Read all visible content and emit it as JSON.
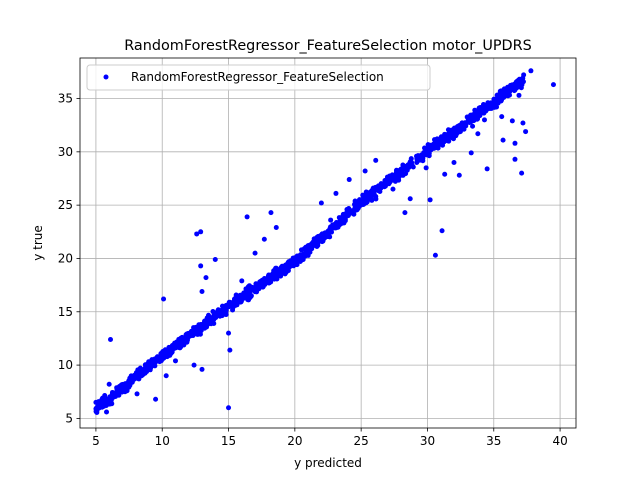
{
  "chart_data": {
    "type": "scatter",
    "title": "RandomForestRegressor_FeatureSelection motor_UPDRS",
    "xlabel": "y predicted",
    "ylabel": "y true",
    "xlim": [
      3.8,
      41.2
    ],
    "ylim": [
      4.1,
      38.8
    ],
    "xticks": [
      5,
      10,
      15,
      20,
      25,
      30,
      35,
      40
    ],
    "yticks": [
      5,
      10,
      15,
      20,
      25,
      30,
      35
    ],
    "grid": true,
    "legend_position": "top-left",
    "series": [
      {
        "name": "RandomForestRegressor_FeatureSelection",
        "color": "#0000ff",
        "marker": "circle",
        "trend_points": [
          [
            5.0,
            5.9
          ],
          [
            10.0,
            10.8
          ],
          [
            15.0,
            15.5
          ],
          [
            20.0,
            19.7
          ],
          [
            25.0,
            25.2
          ],
          [
            30.0,
            30.1
          ],
          [
            35.0,
            34.6
          ],
          [
            37.3,
            36.9
          ]
        ],
        "outliers": [
          [
            5.0,
            6.5
          ],
          [
            5.5,
            6.9
          ],
          [
            5.8,
            5.6
          ],
          [
            6.1,
            12.4
          ],
          [
            6.0,
            8.2
          ],
          [
            8.1,
            7.3
          ],
          [
            9.5,
            6.8
          ],
          [
            10.1,
            16.2
          ],
          [
            10.3,
            9.0
          ],
          [
            11.0,
            10.4
          ],
          [
            12.4,
            10.0
          ],
          [
            12.6,
            22.3
          ],
          [
            12.9,
            22.5
          ],
          [
            12.9,
            19.3
          ],
          [
            13.0,
            16.9
          ],
          [
            13.0,
            9.6
          ],
          [
            13.3,
            18.2
          ],
          [
            14.0,
            19.9
          ],
          [
            14.2,
            15.1
          ],
          [
            15.0,
            6.0
          ],
          [
            15.0,
            13.0
          ],
          [
            15.1,
            11.4
          ],
          [
            16.0,
            17.9
          ],
          [
            16.4,
            23.9
          ],
          [
            17.0,
            20.5
          ],
          [
            17.7,
            21.8
          ],
          [
            18.2,
            24.3
          ],
          [
            18.6,
            22.9
          ],
          [
            20.5,
            20.8
          ],
          [
            21.0,
            21.2
          ],
          [
            22.0,
            25.2
          ],
          [
            22.7,
            23.6
          ],
          [
            23.1,
            26.1
          ],
          [
            24.1,
            27.4
          ],
          [
            24.4,
            24.4
          ],
          [
            25.3,
            28.2
          ],
          [
            26.1,
            29.2
          ],
          [
            27.4,
            26.5
          ],
          [
            28.3,
            24.3
          ],
          [
            28.7,
            25.6
          ],
          [
            29.9,
            28.5
          ],
          [
            30.2,
            25.5
          ],
          [
            30.6,
            20.3
          ],
          [
            31.1,
            22.6
          ],
          [
            31.3,
            27.9
          ],
          [
            32.0,
            29.0
          ],
          [
            32.4,
            27.8
          ],
          [
            33.3,
            29.9
          ],
          [
            33.8,
            31.7
          ],
          [
            34.5,
            28.4
          ],
          [
            34.3,
            33.0
          ],
          [
            35.6,
            33.3
          ],
          [
            35.7,
            31.1
          ],
          [
            36.4,
            32.9
          ],
          [
            36.6,
            30.8
          ],
          [
            36.6,
            29.3
          ],
          [
            37.1,
            28.0
          ],
          [
            37.2,
            32.7
          ],
          [
            37.4,
            31.9
          ],
          [
            39.5,
            36.3
          ],
          [
            37.8,
            37.6
          ],
          [
            36.9,
            35.3
          ],
          [
            35.8,
            35.9
          ],
          [
            33.4,
            32.4
          ],
          [
            31.6,
            31.0
          ]
        ]
      }
    ]
  }
}
